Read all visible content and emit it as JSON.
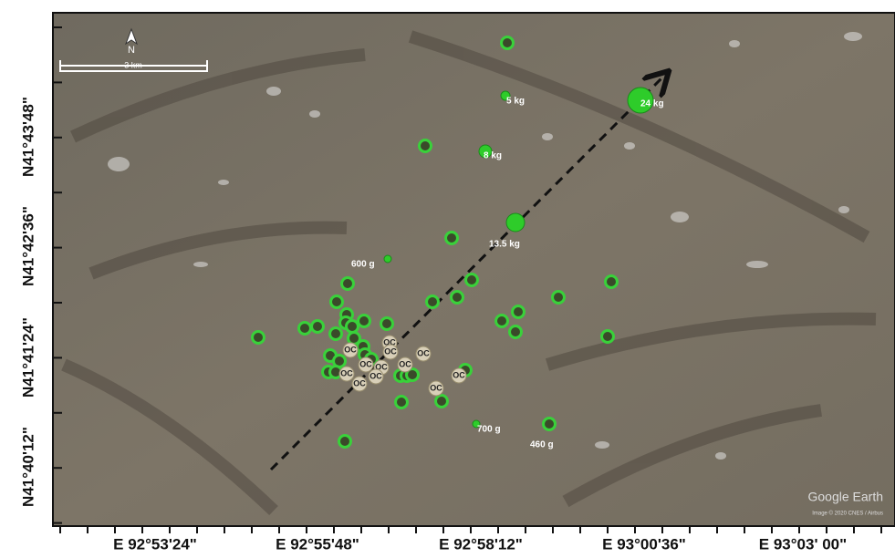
{
  "map": {
    "north_label": "N",
    "scale_label": "3 km",
    "x_labels": [
      "E 92°53'24\"",
      "E 92°55'48\"",
      "E 92°58'12\"",
      "E 93°00'36\"",
      "E 93°03' 00\""
    ],
    "y_labels": [
      "N41°43'48\"",
      "N41°42'36\"",
      "N41°41'24\"",
      "N41°40'12\""
    ],
    "mass_labels": [
      "5 kg",
      "24 kg",
      "8 kg",
      "13.5 kg",
      "600 g",
      "700 g",
      "460 g"
    ],
    "oc_labels": [
      "OC",
      "OC",
      "OC",
      "OC",
      "OC",
      "OC",
      "OC",
      "OC",
      "OC",
      "OC",
      "OC",
      "OC"
    ],
    "watermark": "Google Earth",
    "credit": "Image © 2020 CNES / Airbus"
  }
}
